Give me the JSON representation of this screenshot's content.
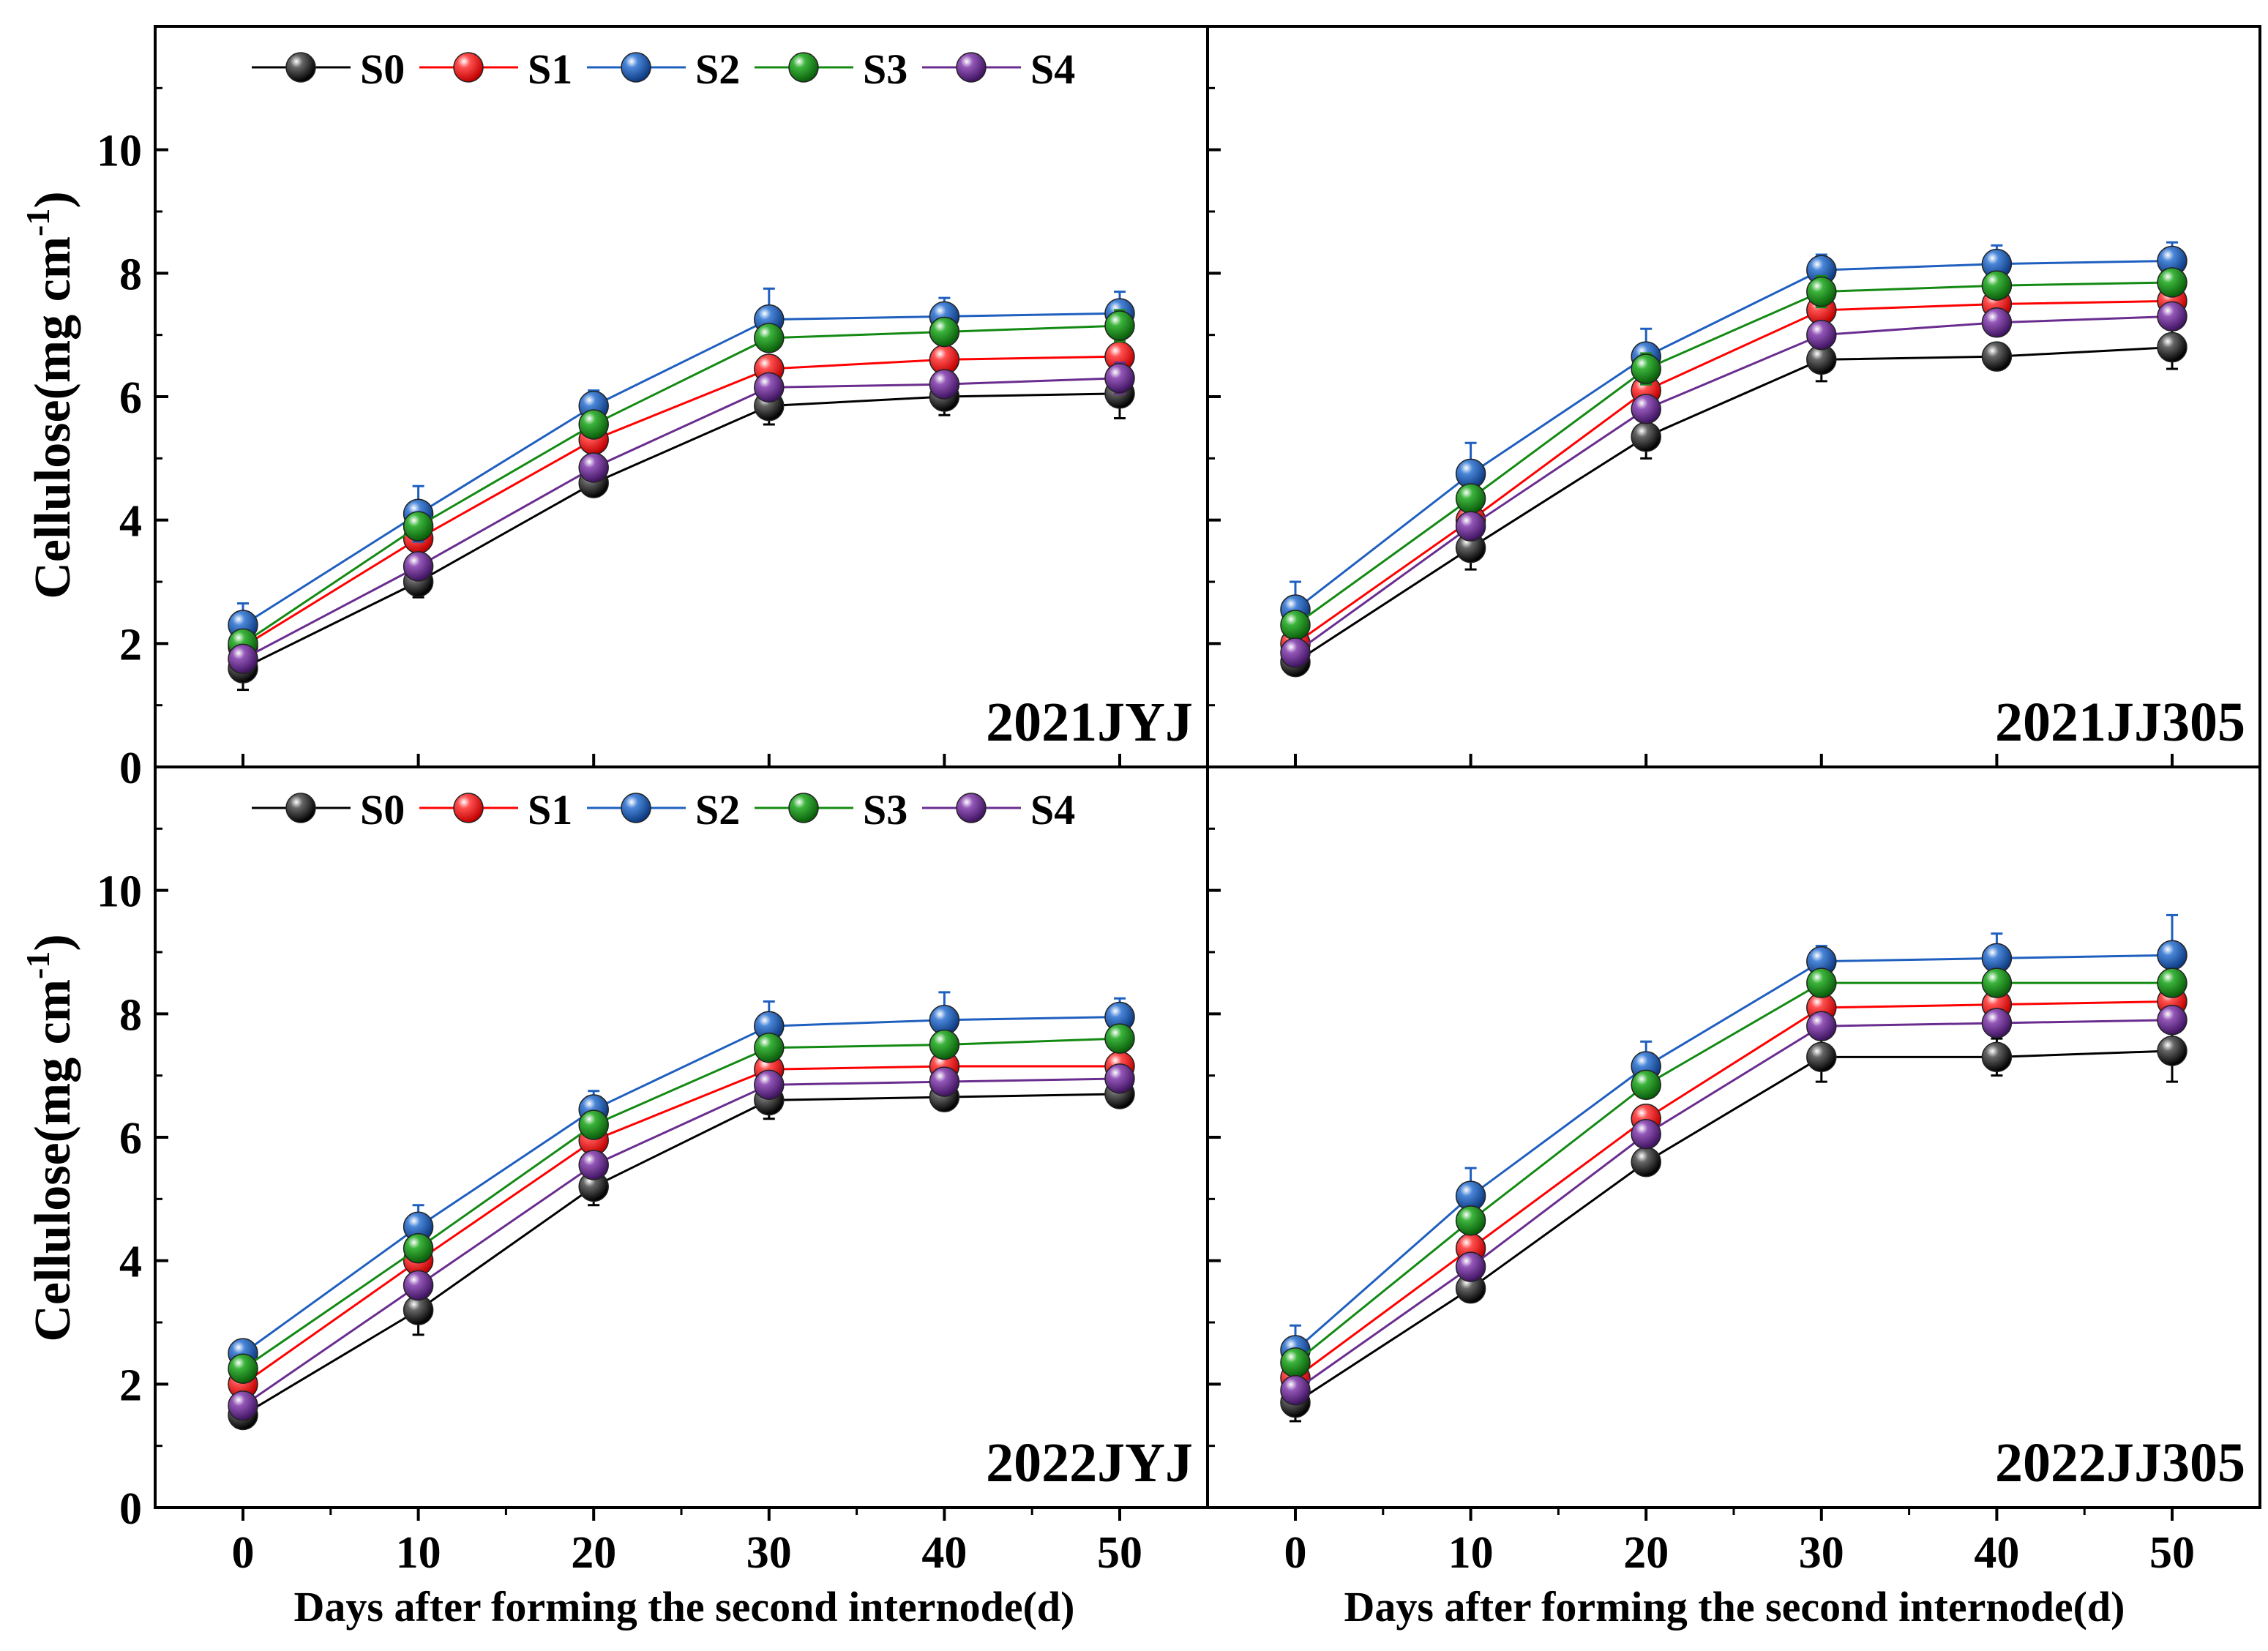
{
  "figure": {
    "ylabel_base": "Cellulose(mg cm",
    "ylabel_exp": "-1",
    "ylabel_close": ")",
    "xlabel": "Days after forming the second internode(d)"
  },
  "series_colors": {
    "S0": "#000000",
    "S1": "#ff0000",
    "S2": "#1f5fbf",
    "S3": "#138a13",
    "S4": "#6a2d8f"
  },
  "chart_data": [
    {
      "type": "line",
      "panel_label": "2021JYJ",
      "x": [
        0,
        10,
        20,
        30,
        40,
        50
      ],
      "xticks": [
        0,
        10,
        20,
        30,
        40,
        50
      ],
      "ylim": [
        0,
        12
      ],
      "yticks": [
        0,
        2,
        4,
        6,
        8,
        10
      ],
      "legend": [
        "S0",
        "S1",
        "S2",
        "S3",
        "S4"
      ],
      "series": [
        {
          "name": "S0",
          "values": [
            1.6,
            3.0,
            4.6,
            5.85,
            6.0,
            6.05
          ],
          "errors": [
            0.35,
            0.25,
            0.15,
            0.3,
            0.3,
            0.4
          ]
        },
        {
          "name": "S1",
          "values": [
            1.95,
            3.7,
            5.3,
            6.45,
            6.6,
            6.65
          ],
          "errors": [
            0.15,
            0.2,
            0.2,
            0.2,
            0.2,
            0.2
          ]
        },
        {
          "name": "S2",
          "values": [
            2.3,
            4.1,
            5.85,
            7.25,
            7.3,
            7.35
          ],
          "errors": [
            0.35,
            0.45,
            0.25,
            0.5,
            0.3,
            0.35
          ]
        },
        {
          "name": "S3",
          "values": [
            2.0,
            3.9,
            5.55,
            6.95,
            7.05,
            7.15
          ],
          "errors": [
            0.2,
            0.2,
            0.2,
            0.2,
            0.2,
            0.25
          ]
        },
        {
          "name": "S4",
          "values": [
            1.75,
            3.25,
            4.85,
            6.15,
            6.2,
            6.3
          ],
          "errors": [
            0.2,
            0.2,
            0.2,
            0.2,
            0.2,
            0.25
          ]
        }
      ]
    },
    {
      "type": "line",
      "panel_label": "2021JJ305",
      "x": [
        0,
        10,
        20,
        30,
        40,
        50
      ],
      "xticks": [
        0,
        10,
        20,
        30,
        40,
        50
      ],
      "ylim": [
        0,
        12
      ],
      "yticks": [
        0,
        2,
        4,
        6,
        8,
        10
      ],
      "legend": [],
      "series": [
        {
          "name": "S0",
          "values": [
            1.7,
            3.55,
            5.35,
            6.6,
            6.65,
            6.8
          ],
          "errors": [
            0.15,
            0.35,
            0.35,
            0.35,
            0.2,
            0.35
          ]
        },
        {
          "name": "S1",
          "values": [
            2.0,
            4.0,
            6.1,
            7.4,
            7.5,
            7.55
          ],
          "errors": [
            0.2,
            0.2,
            0.2,
            0.2,
            0.2,
            0.2
          ]
        },
        {
          "name": "S2",
          "values": [
            2.55,
            4.75,
            6.65,
            8.05,
            8.15,
            8.2
          ],
          "errors": [
            0.45,
            0.5,
            0.45,
            0.25,
            0.3,
            0.3
          ]
        },
        {
          "name": "S3",
          "values": [
            2.3,
            4.35,
            6.45,
            7.7,
            7.8,
            7.85
          ],
          "errors": [
            0.2,
            0.2,
            0.25,
            0.25,
            0.2,
            0.2
          ]
        },
        {
          "name": "S4",
          "values": [
            1.85,
            3.9,
            5.8,
            7.0,
            7.2,
            7.3
          ],
          "errors": [
            0.2,
            0.2,
            0.2,
            0.2,
            0.2,
            0.2
          ]
        }
      ]
    },
    {
      "type": "line",
      "panel_label": "2022JYJ",
      "x": [
        0,
        10,
        20,
        30,
        40,
        50
      ],
      "xticks": [
        0,
        10,
        20,
        30,
        40,
        50
      ],
      "ylim": [
        0,
        12
      ],
      "yticks": [
        0,
        2,
        4,
        6,
        8,
        10
      ],
      "legend": [
        "S0",
        "S1",
        "S2",
        "S3",
        "S4"
      ],
      "series": [
        {
          "name": "S0",
          "values": [
            1.5,
            3.2,
            5.2,
            6.6,
            6.65,
            6.7
          ],
          "errors": [
            0.1,
            0.4,
            0.3,
            0.3,
            0.2,
            0.2
          ]
        },
        {
          "name": "S1",
          "values": [
            2.0,
            4.0,
            5.95,
            7.1,
            7.15,
            7.15
          ],
          "errors": [
            0.2,
            0.2,
            0.2,
            0.2,
            0.2,
            0.2
          ]
        },
        {
          "name": "S2",
          "values": [
            2.5,
            4.55,
            6.45,
            7.8,
            7.9,
            7.95
          ],
          "errors": [
            0.2,
            0.35,
            0.3,
            0.4,
            0.45,
            0.3
          ]
        },
        {
          "name": "S3",
          "values": [
            2.25,
            4.2,
            6.2,
            7.45,
            7.5,
            7.6
          ],
          "errors": [
            0.2,
            0.2,
            0.2,
            0.2,
            0.2,
            0.2
          ]
        },
        {
          "name": "S4",
          "values": [
            1.65,
            3.6,
            5.55,
            6.85,
            6.9,
            6.95
          ],
          "errors": [
            0.2,
            0.2,
            0.2,
            0.2,
            0.2,
            0.2
          ]
        }
      ]
    },
    {
      "type": "line",
      "panel_label": "2022JJ305",
      "x": [
        0,
        10,
        20,
        30,
        40,
        50
      ],
      "xticks": [
        0,
        10,
        20,
        30,
        40,
        50
      ],
      "ylim": [
        0,
        12
      ],
      "yticks": [
        0,
        2,
        4,
        6,
        8,
        10
      ],
      "legend": [],
      "series": [
        {
          "name": "S0",
          "values": [
            1.7,
            3.55,
            5.6,
            7.3,
            7.3,
            7.4
          ],
          "errors": [
            0.3,
            0.1,
            0.2,
            0.4,
            0.3,
            0.5
          ]
        },
        {
          "name": "S1",
          "values": [
            2.1,
            4.2,
            6.3,
            8.1,
            8.15,
            8.2
          ],
          "errors": [
            0.2,
            0.2,
            0.2,
            0.2,
            0.2,
            0.2
          ]
        },
        {
          "name": "S2",
          "values": [
            2.55,
            5.05,
            7.15,
            8.85,
            8.9,
            8.95
          ],
          "errors": [
            0.4,
            0.45,
            0.4,
            0.25,
            0.4,
            0.65
          ]
        },
        {
          "name": "S3",
          "values": [
            2.35,
            4.65,
            6.85,
            8.5,
            8.5,
            8.5
          ],
          "errors": [
            0.2,
            0.2,
            0.2,
            0.2,
            0.2,
            0.2
          ]
        },
        {
          "name": "S4",
          "values": [
            1.9,
            3.9,
            6.05,
            7.8,
            7.85,
            7.9
          ],
          "errors": [
            0.2,
            0.2,
            0.2,
            0.2,
            0.2,
            0.2
          ]
        }
      ]
    }
  ]
}
